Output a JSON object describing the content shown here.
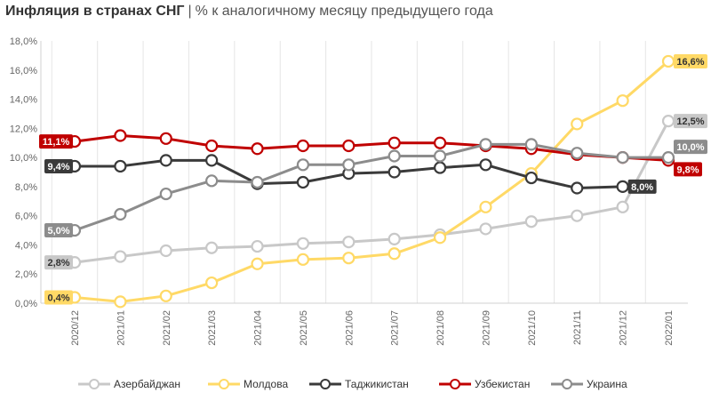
{
  "title": {
    "main": "Инфляция в странах СНГ",
    "separator": "|",
    "subtitle": "% к аналогичному месяцу предыдущего года"
  },
  "chart_data": {
    "type": "line",
    "categories": [
      "2020/12",
      "2021/01",
      "2021/02",
      "2021/03",
      "2021/04",
      "2021/05",
      "2021/06",
      "2021/07",
      "2021/08",
      "2021/09",
      "2021/10",
      "2021/11",
      "2021/12",
      "2022/01"
    ],
    "y_ticks": [
      "0,0%",
      "2,0%",
      "4,0%",
      "6,0%",
      "8,0%",
      "10,0%",
      "12,0%",
      "14,0%",
      "16,0%",
      "18,0%"
    ],
    "ylim": [
      0,
      18
    ],
    "grid": "vertical",
    "legend_position": "bottom",
    "series": [
      {
        "name": "Азербайджан",
        "color": "#c8c8c8",
        "values": [
          2.8,
          3.2,
          3.6,
          3.8,
          3.9,
          4.1,
          4.2,
          4.4,
          4.7,
          5.1,
          5.6,
          6.0,
          6.6,
          12.5
        ],
        "labels": [
          {
            "index": 0,
            "text": "2,8%",
            "side": "left"
          },
          {
            "index": 13,
            "text": "12,5%",
            "side": "right"
          }
        ]
      },
      {
        "name": "Молдова",
        "color": "#ffd966",
        "values": [
          0.4,
          0.1,
          0.5,
          1.4,
          2.7,
          3.0,
          3.1,
          3.4,
          4.5,
          6.6,
          8.9,
          12.3,
          13.9,
          16.6
        ],
        "labels": [
          {
            "index": 0,
            "text": "0,4%",
            "side": "left"
          },
          {
            "index": 13,
            "text": "16,6%",
            "side": "right"
          }
        ]
      },
      {
        "name": "Таджикистан",
        "color": "#3a3a3a",
        "values": [
          9.4,
          9.4,
          9.8,
          9.8,
          8.2,
          8.3,
          8.9,
          9.0,
          9.3,
          9.5,
          8.6,
          7.9,
          8.0,
          null
        ],
        "labels": [
          {
            "index": 0,
            "text": "9,4%",
            "side": "left"
          },
          {
            "index": 12,
            "text": "8,0%",
            "side": "right"
          }
        ]
      },
      {
        "name": "Узбекистан",
        "color": "#c00000",
        "values": [
          11.1,
          11.5,
          11.3,
          10.8,
          10.6,
          10.8,
          10.8,
          11.0,
          11.0,
          10.8,
          10.6,
          10.2,
          10.0,
          9.8
        ],
        "labels": [
          {
            "index": 0,
            "text": "11,1%",
            "side": "left"
          },
          {
            "index": 13,
            "text": "9,8%",
            "side": "right-below"
          }
        ]
      },
      {
        "name": "Украина",
        "color": "#8c8c8c",
        "values": [
          5.0,
          6.1,
          7.5,
          8.4,
          8.3,
          9.5,
          9.5,
          10.1,
          10.1,
          10.9,
          10.9,
          10.3,
          10.0,
          10.0
        ],
        "labels": [
          {
            "index": 0,
            "text": "5,0%",
            "side": "left"
          },
          {
            "index": 13,
            "text": "10,0%",
            "side": "right-above"
          }
        ]
      }
    ]
  }
}
